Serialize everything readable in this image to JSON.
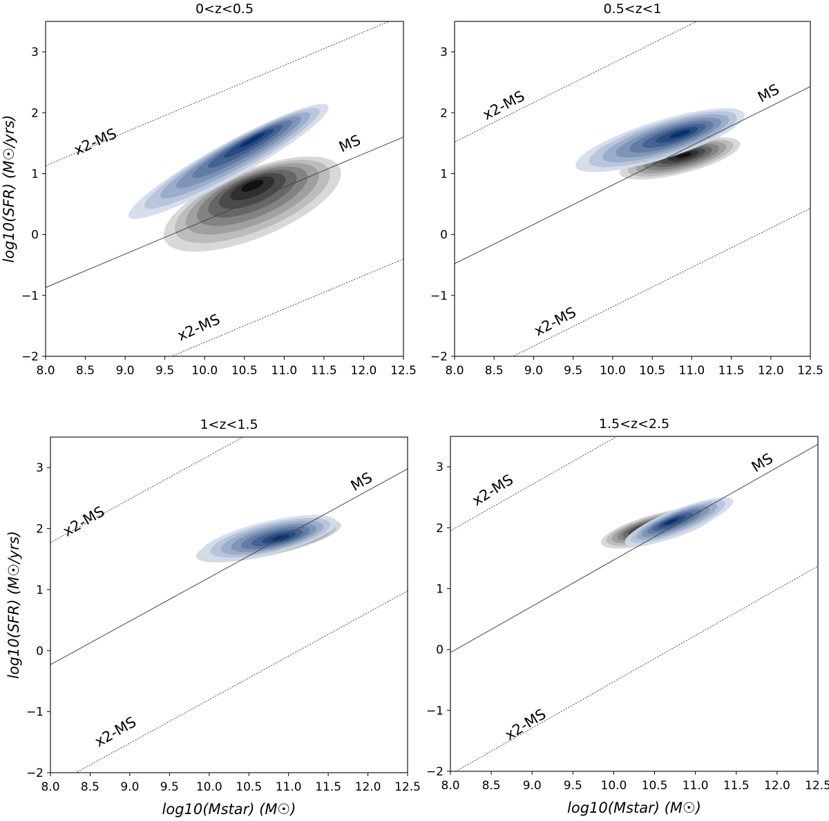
{
  "colors": {
    "quiescent_density": "#111111",
    "starforming_density": "#08519c",
    "ms_line": "#444444"
  },
  "chart_data": [
    {
      "type": "kde_contour",
      "title": "0<z<0.5",
      "xlabel": "",
      "ylabel": "log10(SFR) (M☉/yrs)",
      "xlim": [
        8.0,
        12.5
      ],
      "ylim": [
        -2,
        3.5
      ],
      "xticks": [
        "8.0",
        "8.5",
        "9.0",
        "9.5",
        "10.0",
        "10.5",
        "11.0",
        "11.5",
        "12.0",
        "12.5"
      ],
      "yticks": [
        "−2",
        "−1",
        "0",
        "1",
        "2",
        "3"
      ],
      "lines": [
        {
          "name": "MS",
          "style": "solid",
          "x": [
            8.0,
            12.5
          ],
          "y": [
            -0.87,
            1.6
          ]
        },
        {
          "name": "x2-MS upper",
          "style": "dotted",
          "x": [
            8.0,
            12.5
          ],
          "y": [
            1.13,
            3.6
          ]
        },
        {
          "name": "x2-MS lower",
          "style": "dotted",
          "x": [
            8.0,
            12.5
          ],
          "y": [
            -2.87,
            -0.4
          ]
        }
      ],
      "annotations": [
        {
          "text": "MS",
          "x": 11.85,
          "y": 1.42,
          "rotate": -24
        },
        {
          "text": "x2-MS",
          "x": 8.65,
          "y": 1.45,
          "rotate": -24
        },
        {
          "text": "x2-MS",
          "x": 9.95,
          "y": -1.6,
          "rotate": -24
        }
      ],
      "density": [
        {
          "series": "quiescent",
          "color": "#000000",
          "center_x": 10.6,
          "center_y": 0.5,
          "sigma_major": 1.25,
          "sigma_minor": 0.62,
          "angle": 28,
          "peak": [
            10.6,
            0.8
          ]
        },
        {
          "series": "star-forming",
          "color": "#08519c",
          "center_x": 10.3,
          "center_y": 1.2,
          "sigma_major": 1.55,
          "sigma_minor": 0.32,
          "angle": 36,
          "peak": [
            10.6,
            1.55
          ]
        }
      ]
    },
    {
      "type": "kde_contour",
      "title": "0.5<z<1",
      "xlabel": "",
      "ylabel": "",
      "xlim": [
        8.0,
        12.5
      ],
      "ylim": [
        -2,
        3.5
      ],
      "xticks": [
        "8.0",
        "8.5",
        "9.0",
        "9.5",
        "10.0",
        "10.5",
        "11.0",
        "11.5",
        "12.0",
        "12.5"
      ],
      "yticks": [
        "−2",
        "−1",
        "0",
        "1",
        "2",
        "3"
      ],
      "lines": [
        {
          "name": "MS",
          "style": "solid",
          "x": [
            8.0,
            12.5
          ],
          "y": [
            -0.48,
            2.43
          ]
        },
        {
          "name": "x2-MS upper",
          "style": "dotted",
          "x": [
            8.0,
            12.5
          ],
          "y": [
            1.52,
            4.43
          ]
        },
        {
          "name": "x2-MS lower",
          "style": "dotted",
          "x": [
            8.0,
            12.5
          ],
          "y": [
            -2.48,
            0.43
          ]
        }
      ],
      "annotations": [
        {
          "text": "MS",
          "x": 12.0,
          "y": 2.25,
          "rotate": -28
        },
        {
          "text": "x2-MS",
          "x": 8.65,
          "y": 2.05,
          "rotate": -28
        },
        {
          "text": "x2-MS",
          "x": 9.3,
          "y": -1.5,
          "rotate": -28
        }
      ],
      "density": [
        {
          "series": "quiescent",
          "color": "#000000",
          "center_x": 10.85,
          "center_y": 1.25,
          "sigma_major": 0.8,
          "sigma_minor": 0.28,
          "angle": 18,
          "peak": [
            10.9,
            1.3
          ]
        },
        {
          "series": "star-forming",
          "color": "#08519c",
          "center_x": 10.6,
          "center_y": 1.55,
          "sigma_major": 1.15,
          "sigma_minor": 0.35,
          "angle": 22,
          "peak": [
            10.85,
            1.65
          ]
        }
      ]
    },
    {
      "type": "kde_contour",
      "title": "1<z<1.5",
      "xlabel": "log10(Mstar) (M☉)",
      "ylabel": "log10(SFR) (M☉/yrs)",
      "xlim": [
        8.0,
        12.5
      ],
      "ylim": [
        -2,
        3.5
      ],
      "xticks": [
        "8.0",
        "8.5",
        "9.0",
        "9.5",
        "10.0",
        "10.5",
        "11.0",
        "11.5",
        "12.0",
        "12.5"
      ],
      "yticks": [
        "−2",
        "−1",
        "0",
        "1",
        "2",
        "3"
      ],
      "lines": [
        {
          "name": "MS",
          "style": "solid",
          "x": [
            8.0,
            12.5
          ],
          "y": [
            -0.23,
            2.98
          ]
        },
        {
          "name": "x2-MS upper",
          "style": "dotted",
          "x": [
            8.0,
            12.5
          ],
          "y": [
            1.77,
            4.98
          ]
        },
        {
          "name": "x2-MS lower",
          "style": "dotted",
          "x": [
            8.0,
            12.5
          ],
          "y": [
            -2.23,
            0.98
          ]
        }
      ],
      "annotations": [
        {
          "text": "MS",
          "x": 11.95,
          "y": 2.7,
          "rotate": -30
        },
        {
          "text": "x2-MS",
          "x": 8.45,
          "y": 2.05,
          "rotate": -30
        },
        {
          "text": "x2-MS",
          "x": 8.85,
          "y": -1.4,
          "rotate": -30
        }
      ],
      "density": [
        {
          "series": "quiescent",
          "color": "#000000",
          "center_x": 10.75,
          "center_y": 1.8,
          "sigma_major": 0.95,
          "sigma_minor": 0.27,
          "angle": 16,
          "peak": [
            11.1,
            1.8
          ]
        },
        {
          "series": "star-forming",
          "color": "#08519c",
          "center_x": 10.75,
          "center_y": 1.85,
          "sigma_major": 0.9,
          "sigma_minor": 0.3,
          "angle": 17,
          "peak": [
            10.9,
            1.85
          ]
        }
      ]
    },
    {
      "type": "kde_contour",
      "title": "1.5<z<2.5",
      "xlabel": "log10(Mstar) (M☉)",
      "ylabel": "",
      "xlim": [
        8.0,
        12.5
      ],
      "ylim": [
        -2,
        3.5
      ],
      "xticks": [
        "8.0",
        "8.5",
        "9.0",
        "9.5",
        "10.0",
        "10.5",
        "11.0",
        "11.5",
        "12.0",
        "12.5"
      ],
      "yticks": [
        "−2",
        "−1",
        "0",
        "1",
        "2",
        "3"
      ],
      "lines": [
        {
          "name": "MS",
          "style": "solid",
          "x": [
            8.0,
            12.5
          ],
          "y": [
            -0.05,
            3.37
          ]
        },
        {
          "name": "x2-MS upper",
          "style": "dotted",
          "x": [
            8.0,
            12.5
          ],
          "y": [
            1.95,
            5.37
          ]
        },
        {
          "name": "x2-MS lower",
          "style": "dotted",
          "x": [
            8.0,
            12.5
          ],
          "y": [
            -2.05,
            1.37
          ]
        }
      ],
      "annotations": [
        {
          "text": "MS",
          "x": 11.85,
          "y": 3.0,
          "rotate": -32
        },
        {
          "text": "x2-MS",
          "x": 8.55,
          "y": 2.55,
          "rotate": -32
        },
        {
          "text": "x2-MS",
          "x": 8.95,
          "y": -1.3,
          "rotate": -32
        }
      ],
      "density": [
        {
          "series": "quiescent",
          "color": "#000000",
          "center_x": 10.55,
          "center_y": 2.0,
          "sigma_major": 0.75,
          "sigma_minor": 0.26,
          "angle": 20,
          "peak": [
            10.4,
            2.0
          ]
        },
        {
          "series": "star-forming",
          "color": "#08519c",
          "center_x": 10.8,
          "center_y": 2.1,
          "sigma_major": 0.75,
          "sigma_minor": 0.23,
          "angle": 28,
          "peak": [
            10.7,
            2.1
          ]
        }
      ]
    }
  ]
}
